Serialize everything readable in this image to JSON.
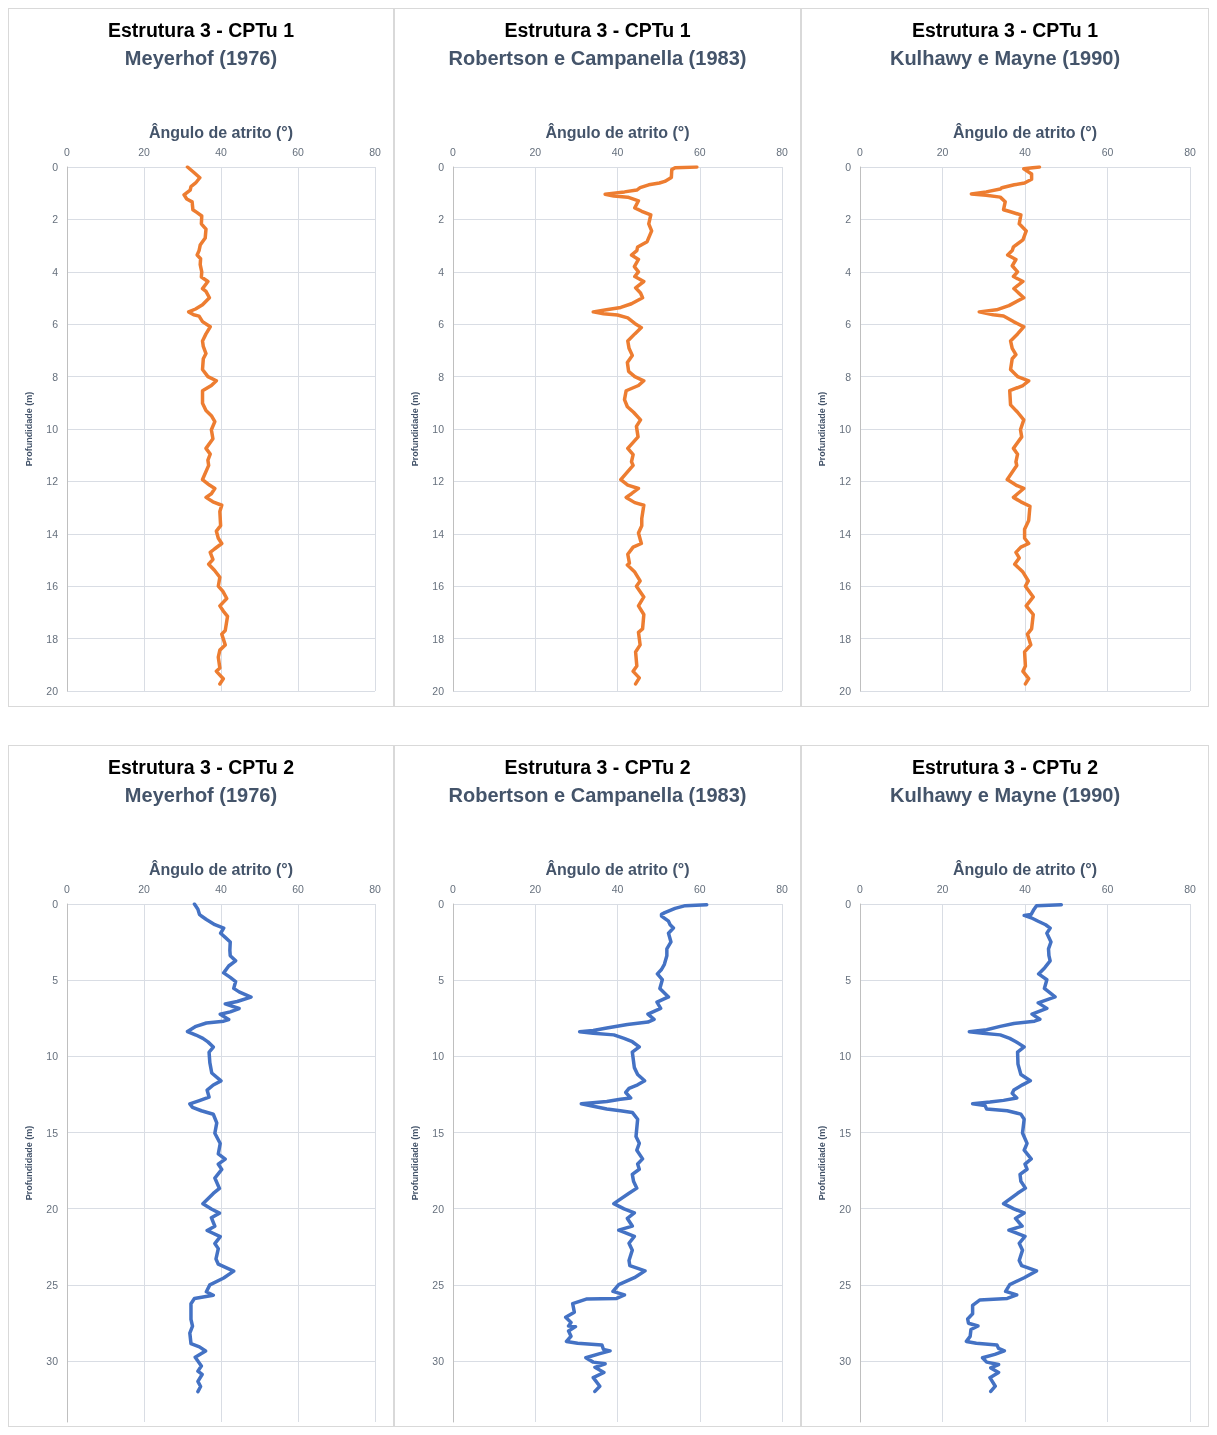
{
  "chart_data": [
    {
      "type": "line",
      "title": "Estrutura 3 - CPTu 1",
      "subtitle": "Meyerhof (1976)",
      "xlabel": "Ângulo de atrito (°)",
      "ylabel": "Profundidade (m)",
      "color": "#ed7d31",
      "xlim": [
        0,
        80
      ],
      "xticks": [
        0,
        20,
        40,
        60,
        80
      ],
      "ylim": [
        20,
        0
      ],
      "yticks": [
        0,
        2,
        4,
        6,
        8,
        10,
        12,
        14,
        16,
        18,
        20
      ],
      "grid": true,
      "x": [
        31.3,
        32.9,
        34.5,
        33.4,
        32.2,
        32.0,
        30.4,
        31.1,
        32.5,
        32.7,
        33.8,
        35.0,
        34.9,
        36.1,
        35.9,
        34.6,
        34.3,
        33.8,
        34.7,
        34.6,
        35.0,
        34.9,
        36.6,
        35.2,
        36.1,
        37.0,
        35.2,
        33.4,
        31.6,
        32.9,
        34.3,
        35.2,
        37.2,
        36.1,
        35.2,
        35.4,
        36.1,
        35.4,
        35.2,
        36.6,
        38.8,
        37.5,
        35.2,
        35.2,
        36.1,
        37.5,
        38.4,
        37.5,
        37.9,
        36.1,
        37.2,
        36.6,
        36.8,
        35.2,
        37.0,
        38.4,
        37.5,
        36.1,
        37.9,
        40.2,
        39.7,
        39.9,
        38.8,
        39.3,
        40.2,
        38.3,
        37.2,
        37.9,
        36.8,
        38.3,
        39.7,
        39.3,
        40.5,
        41.5,
        39.7,
        40.6,
        41.7,
        41.1,
        40.2,
        41.1,
        39.7,
        39.3,
        39.7,
        38.8,
        40.6,
        39.7
      ],
      "values": [
        0,
        0.2,
        0.41,
        0.61,
        0.75,
        0.88,
        1.06,
        1.22,
        1.33,
        1.63,
        1.74,
        1.87,
        2.17,
        2.37,
        2.71,
        2.98,
        3.19,
        3.36,
        3.5,
        3.73,
        4.0,
        4.2,
        4.37,
        4.64,
        4.75,
        4.99,
        5.26,
        5.42,
        5.53,
        5.64,
        5.69,
        5.9,
        6.1,
        6.37,
        6.64,
        6.85,
        7.12,
        7.32,
        7.73,
        8.0,
        8.16,
        8.34,
        8.54,
        9.02,
        9.29,
        9.49,
        9.72,
        10.03,
        10.37,
        10.74,
        10.96,
        11.19,
        11.39,
        11.93,
        12.14,
        12.27,
        12.47,
        12.61,
        12.78,
        12.91,
        13.15,
        13.69,
        13.9,
        14.17,
        14.37,
        14.58,
        14.71,
        14.98,
        15.16,
        15.39,
        15.66,
        16.0,
        16.2,
        16.47,
        16.75,
        16.95,
        17.15,
        17.69,
        17.83,
        18.24,
        18.44,
        18.71,
        19.12,
        19.25,
        19.53,
        19.73
      ]
    },
    {
      "type": "line",
      "title": "Estrutura 3 - CPTu 1",
      "subtitle": "Robertson e Campanella (1983)",
      "xlabel": "Ângulo de atrito (°)",
      "ylabel": "Profundidade (m)",
      "color": "#ed7d31",
      "xlim": [
        0,
        80
      ],
      "xticks": [
        0,
        20,
        40,
        60,
        80
      ],
      "ylim": [
        20,
        0
      ],
      "yticks": [
        0,
        2,
        4,
        6,
        8,
        10,
        12,
        14,
        16,
        18,
        20
      ],
      "grid": true,
      "x": [
        59.3,
        54.0,
        53.2,
        53.1,
        51.5,
        50.2,
        47.6,
        45.5,
        44.7,
        41.7,
        37.0,
        39.1,
        42.5,
        45.1,
        44.2,
        45.9,
        48.1,
        47.6,
        48.3,
        47.2,
        44.9,
        44.7,
        43.4,
        45.1,
        44.1,
        45.1,
        44.2,
        46.4,
        44.4,
        45.6,
        46.1,
        43.4,
        40.8,
        37.3,
        34.1,
        36.6,
        40.0,
        42.5,
        44.2,
        45.8,
        44.2,
        42.5,
        42.8,
        43.6,
        42.4,
        42.7,
        44.2,
        46.4,
        45.1,
        42.1,
        41.7,
        42.4,
        43.9,
        45.6,
        44.6,
        45.0,
        42.5,
        43.8,
        43.4,
        43.8,
        40.8,
        42.5,
        45.1,
        43.4,
        42.1,
        44.2,
        46.4,
        45.9,
        45.9,
        45.1,
        45.8,
        43.8,
        42.5,
        42.9,
        42.4,
        44.2,
        45.5,
        44.6,
        46.4,
        45.1,
        46.4,
        46.1,
        45.1,
        45.5,
        44.4,
        44.7,
        43.8,
        45.3,
        44.4
      ],
      "values": [
        0,
        0.03,
        0.1,
        0.4,
        0.55,
        0.61,
        0.68,
        0.79,
        0.88,
        0.95,
        1.04,
        1.11,
        1.15,
        1.29,
        1.56,
        1.69,
        1.83,
        2.17,
        2.44,
        2.85,
        3.05,
        3.19,
        3.36,
        3.53,
        3.8,
        4.0,
        4.18,
        4.37,
        4.61,
        4.81,
        4.99,
        5.22,
        5.36,
        5.45,
        5.53,
        5.6,
        5.65,
        5.76,
        5.97,
        6.13,
        6.37,
        6.64,
        6.92,
        7.19,
        7.46,
        7.8,
        8.0,
        8.16,
        8.34,
        8.54,
        8.88,
        9.15,
        9.36,
        9.65,
        9.9,
        10.3,
        10.74,
        10.98,
        11.25,
        11.39,
        11.93,
        12.14,
        12.27,
        12.47,
        12.61,
        12.81,
        12.91,
        13.42,
        13.69,
        13.97,
        14.37,
        14.51,
        14.78,
        15.12,
        15.19,
        15.46,
        15.8,
        16.0,
        16.41,
        16.75,
        17.08,
        17.63,
        17.76,
        18.24,
        18.51,
        19.05,
        19.25,
        19.5,
        19.73
      ]
    },
    {
      "type": "line",
      "title": "Estrutura 3 - CPTu 1",
      "subtitle": "Kulhawy e Mayne (1990)",
      "xlabel": "Ângulo de atrito (°)",
      "ylabel": "Profundidade (m)",
      "color": "#ed7d31",
      "xlim": [
        0,
        80
      ],
      "xticks": [
        0,
        20,
        40,
        60,
        80
      ],
      "ylim": [
        20,
        0
      ],
      "yticks": [
        0,
        2,
        4,
        6,
        8,
        10,
        12,
        14,
        16,
        18,
        20
      ],
      "grid": true,
      "x": [
        43.5,
        39.7,
        41.6,
        41.6,
        39.9,
        37.4,
        34.4,
        34.0,
        30.6,
        27.0,
        30.6,
        34.0,
        35.2,
        34.8,
        36.1,
        39.0,
        38.6,
        40.3,
        39.5,
        37.2,
        36.9,
        35.8,
        37.8,
        36.9,
        38.2,
        37.2,
        39.5,
        37.3,
        39.7,
        36.1,
        33.1,
        28.9,
        32.3,
        34.8,
        37.2,
        39.7,
        38.2,
        36.5,
        36.9,
        37.8,
        36.9,
        36.5,
        38.2,
        40.9,
        39.5,
        36.3,
        36.5,
        38.2,
        39.7,
        38.9,
        39.2,
        37.2,
        38.2,
        37.8,
        38.0,
        35.7,
        37.8,
        39.7,
        38.2,
        37.2,
        39.0,
        41.2,
        40.9,
        39.9,
        39.9,
        40.9,
        39.0,
        37.8,
        38.6,
        37.5,
        39.5,
        40.8,
        40.1,
        42.0,
        40.3,
        42.0,
        41.6,
        40.6,
        41.4,
        39.9,
        40.1,
        39.5,
        40.9,
        40.1
      ],
      "values": [
        0,
        0.07,
        0.27,
        0.47,
        0.61,
        0.68,
        0.79,
        0.84,
        0.95,
        1.03,
        1.08,
        1.15,
        1.33,
        1.63,
        1.69,
        1.83,
        2.17,
        2.44,
        2.78,
        3.05,
        3.19,
        3.36,
        3.53,
        3.77,
        4.0,
        4.18,
        4.37,
        4.64,
        4.99,
        5.29,
        5.45,
        5.53,
        5.64,
        5.69,
        5.9,
        6.1,
        6.37,
        6.64,
        6.92,
        7.16,
        7.32,
        7.73,
        8.0,
        8.16,
        8.34,
        8.54,
        9.08,
        9.36,
        9.65,
        10.03,
        10.3,
        10.74,
        10.96,
        11.25,
        11.39,
        11.93,
        12.14,
        12.27,
        12.47,
        12.61,
        12.78,
        12.95,
        13.49,
        13.83,
        14.17,
        14.37,
        14.51,
        14.71,
        14.92,
        15.16,
        15.46,
        15.8,
        16.0,
        16.41,
        16.75,
        17.08,
        17.63,
        17.83,
        18.24,
        18.51,
        19.05,
        19.25,
        19.53,
        19.73
      ]
    },
    {
      "type": "line",
      "title": "Estrutura 3 - CPTu 2",
      "subtitle": "Meyerhof (1976)",
      "xlabel": "Ângulo de atrito (°)",
      "ylabel": "Profundidade (m)",
      "color": "#4472c4",
      "xlim": [
        0,
        80
      ],
      "xticks": [
        0,
        20,
        40,
        60,
        80
      ],
      "ylim": [
        34,
        0
      ],
      "yticks": [
        0,
        5,
        10,
        15,
        20,
        25,
        30
      ],
      "grid": true,
      "x": [
        33.1,
        34.0,
        34.4,
        34.9,
        36.2,
        38.4,
        40.7,
        39.9,
        41.1,
        42.4,
        42.3,
        42.4,
        43.8,
        42.0,
        40.7,
        42.4,
        43.8,
        43.3,
        44.7,
        47.8,
        44.2,
        41.1,
        44.7,
        42.4,
        39.8,
        42.0,
        40.7,
        36.2,
        33.5,
        31.3,
        33.5,
        35.3,
        36.6,
        38.0,
        36.9,
        37.1,
        37.6,
        40.0,
        38.0,
        36.4,
        36.9,
        34.4,
        31.9,
        32.6,
        34.9,
        38.0,
        38.9,
        38.4,
        39.8,
        39.3,
        41.1,
        39.3,
        40.2,
        38.4,
        39.6,
        38.0,
        35.3,
        37.5,
        39.6,
        37.5,
        38.4,
        36.4,
        39.8,
        38.4,
        39.3,
        38.7,
        39.3,
        43.3,
        40.7,
        37.1,
        36.2,
        38.0,
        33.1,
        32.2,
        32.2,
        32.6,
        31.9,
        32.2,
        34.4,
        36.0,
        33.3,
        34.9,
        34.0,
        35.1,
        34.0,
        34.7,
        34.0
      ],
      "values": [
        0,
        0.34,
        0.68,
        0.79,
        1.02,
        1.36,
        1.58,
        1.92,
        2.19,
        2.49,
        3.05,
        3.39,
        3.73,
        4.07,
        4.52,
        4.82,
        5.09,
        5.54,
        5.77,
        6.11,
        6.4,
        6.56,
        6.86,
        7.08,
        7.24,
        7.58,
        7.69,
        7.81,
        8.03,
        8.37,
        8.6,
        8.82,
        9.05,
        9.39,
        9.73,
        10.41,
        11.09,
        11.61,
        11.88,
        12.22,
        12.67,
        12.9,
        13.12,
        13.35,
        13.57,
        13.8,
        14.37,
        15.05,
        15.72,
        16.4,
        16.74,
        17.08,
        17.42,
        17.99,
        18.67,
        19.0,
        19.68,
        20.02,
        20.29,
        20.59,
        21.15,
        21.43,
        21.83,
        22.29,
        22.62,
        23.3,
        23.64,
        24.1,
        24.55,
        25.0,
        25.45,
        25.68,
        25.9,
        26.24,
        27.26,
        27.71,
        28.16,
        28.85,
        29.07,
        29.34,
        29.75,
        30.32,
        30.66,
        30.88,
        31.33,
        31.67,
        32.01
      ]
    },
    {
      "type": "line",
      "title": "Estrutura 3 - CPTu 2",
      "subtitle": "Robertson e Campanella (1983)",
      "xlabel": "Ângulo de atrito (°)",
      "ylabel": "Profundidade (m)",
      "color": "#4472c4",
      "xlim": [
        0,
        80
      ],
      "xticks": [
        0,
        20,
        40,
        60,
        80
      ],
      "ylim": [
        34,
        0
      ],
      "yticks": [
        0,
        5,
        10,
        15,
        20,
        25,
        30
      ],
      "grid": true,
      "x": [
        61.7,
        56.5,
        54.0,
        51.5,
        50.7,
        50.7,
        52.4,
        52.8,
        53.6,
        52.4,
        53.0,
        52.0,
        52.0,
        51.4,
        50.7,
        49.7,
        50.9,
        50.3,
        52.4,
        49.6,
        50.5,
        47.4,
        48.9,
        47.4,
        42.4,
        37.4,
        34.1,
        30.8,
        34.1,
        39.1,
        41.6,
        43.6,
        45.3,
        43.6,
        44.1,
        44.9,
        46.6,
        44.9,
        42.8,
        42.0,
        43.2,
        40.7,
        37.4,
        31.2,
        34.1,
        37.4,
        40.7,
        43.6,
        44.9,
        44.5,
        45.3,
        44.7,
        46.1,
        44.9,
        45.3,
        43.6,
        43.9,
        44.7,
        42.8,
        39.1,
        41.6,
        44.1,
        42.4,
        43.6,
        40.3,
        44.1,
        42.8,
        43.6,
        42.8,
        43.0,
        46.7,
        44.1,
        40.3,
        38.9,
        41.7,
        39.8,
        32.4,
        29.1,
        29.5,
        27.4,
        28.7,
        28.1,
        29.8,
        28.1,
        28.7,
        27.6,
        30.3,
        36.2,
        36.6,
        38.2,
        35.7,
        32.3,
        34.1,
        37.0,
        34.5,
        36.7,
        34.1,
        35.7,
        34.5
      ],
      "values": [
        0.05,
        0.11,
        0.29,
        0.57,
        0.68,
        0.79,
        1.13,
        1.36,
        1.58,
        1.92,
        2.49,
        2.94,
        3.39,
        3.96,
        4.3,
        4.59,
        4.97,
        5.54,
        6.1,
        6.44,
        6.85,
        7.23,
        7.57,
        7.75,
        7.91,
        8.14,
        8.3,
        8.39,
        8.48,
        8.59,
        8.82,
        9.04,
        9.38,
        9.72,
        10.74,
        11.19,
        11.6,
        11.87,
        12.1,
        12.37,
        12.73,
        12.82,
        12.96,
        13.11,
        13.27,
        13.45,
        13.57,
        13.68,
        14.13,
        15.26,
        15.71,
        16.16,
        16.73,
        17.07,
        17.41,
        17.75,
        18.2,
        18.65,
        18.99,
        19.67,
        20.01,
        20.28,
        20.64,
        21.14,
        21.41,
        21.82,
        22.27,
        22.72,
        23.4,
        23.74,
        24.08,
        24.53,
        24.98,
        25.43,
        25.66,
        25.89,
        25.93,
        26.23,
        26.79,
        27.13,
        27.47,
        27.7,
        27.74,
        28.03,
        28.37,
        28.71,
        28.83,
        28.94,
        29.24,
        29.33,
        29.51,
        29.78,
        30.07,
        30.18,
        30.41,
        30.75,
        31.09,
        31.65,
        31.99
      ]
    },
    {
      "type": "line",
      "title": "Estrutura 3 - CPTu 2",
      "subtitle": "Kulhawy e Mayne (1990)",
      "xlabel": "Ângulo de atrito (°)",
      "ylabel": "Profundidade (m)",
      "color": "#4472c4",
      "xlim": [
        0,
        80
      ],
      "xticks": [
        0,
        20,
        40,
        60,
        80
      ],
      "ylim": [
        34,
        0
      ],
      "yticks": [
        0,
        5,
        10,
        15,
        20,
        25,
        30
      ],
      "grid": true,
      "x": [
        48.8,
        42.8,
        42.2,
        41.5,
        39.8,
        41.5,
        43.2,
        45.0,
        46.1,
        45.3,
        46.3,
        45.7,
        45.8,
        46.1,
        44.8,
        43.3,
        45.3,
        44.7,
        47.3,
        43.2,
        45.3,
        41.7,
        43.6,
        42.3,
        37.3,
        34.0,
        30.7,
        26.5,
        29.8,
        34.0,
        36.3,
        37.8,
        39.8,
        38.2,
        38.3,
        39.0,
        41.3,
        39.4,
        37.3,
        36.9,
        38.0,
        34.8,
        31.5,
        27.3,
        30.3,
        30.7,
        35.7,
        39.0,
        39.8,
        39.4,
        40.5,
        39.8,
        41.5,
        40.0,
        40.5,
        38.8,
        39.0,
        40.1,
        38.2,
        34.8,
        37.3,
        39.8,
        37.7,
        39.3,
        36.1,
        40.0,
        38.6,
        39.4,
        38.6,
        39.2,
        42.8,
        39.8,
        36.3,
        35.3,
        38.0,
        35.7,
        29.0,
        27.3,
        27.3,
        26.1,
        26.3,
        28.6,
        26.9,
        26.7,
        25.8,
        28.2,
        33.2,
        33.6,
        35.0,
        32.7,
        29.7,
        30.7,
        33.6,
        31.7,
        33.6,
        31.5,
        32.8,
        31.7
      ],
      "values": [
        0.05,
        0.11,
        0.34,
        0.68,
        0.75,
        0.9,
        1.13,
        1.36,
        1.58,
        1.92,
        2.49,
        2.94,
        3.39,
        3.73,
        4.18,
        4.59,
        4.97,
        5.54,
        6.1,
        6.49,
        6.85,
        7.23,
        7.57,
        7.69,
        7.84,
        8.03,
        8.25,
        8.39,
        8.48,
        8.59,
        8.82,
        9.04,
        9.38,
        9.72,
        10.51,
        11.19,
        11.6,
        11.87,
        12.21,
        12.43,
        12.73,
        12.89,
        13.0,
        13.11,
        13.23,
        13.45,
        13.57,
        13.79,
        14.13,
        15.03,
        15.71,
        16.16,
        16.73,
        17.07,
        17.41,
        17.75,
        18.2,
        18.65,
        18.99,
        19.67,
        20.01,
        20.28,
        20.64,
        21.14,
        21.41,
        21.82,
        22.27,
        22.72,
        23.4,
        23.74,
        24.08,
        24.53,
        24.98,
        25.43,
        25.66,
        25.89,
        26.0,
        26.34,
        26.9,
        27.24,
        27.52,
        27.7,
        27.93,
        28.38,
        28.71,
        28.83,
        28.94,
        29.17,
        29.33,
        29.56,
        29.78,
        30.07,
        30.23,
        30.45,
        30.75,
        31.09,
        31.65,
        31.99
      ]
    }
  ]
}
